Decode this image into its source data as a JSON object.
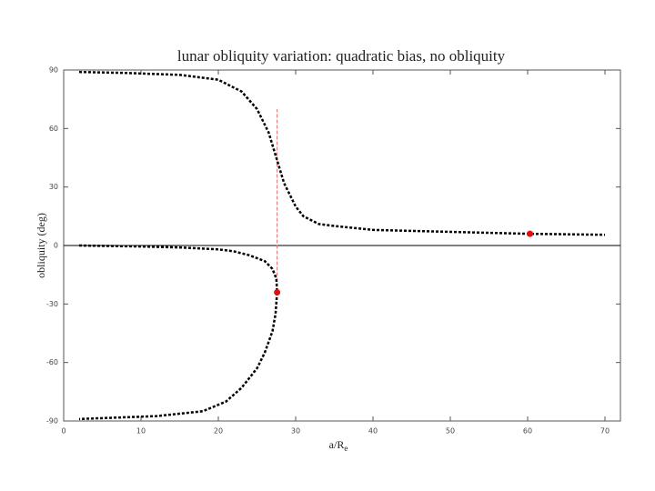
{
  "chart_data": {
    "type": "line",
    "title": "lunar obliquity variation: quadratic bias, no obliquity",
    "xlabel": {
      "main": "a/R",
      "sub": "e"
    },
    "ylabel": "obliquity (deg)",
    "xlim": [
      0,
      72
    ],
    "ylim": [
      -90,
      90
    ],
    "xticks": [
      0,
      10,
      20,
      30,
      40,
      50,
      60,
      70
    ],
    "yticks": [
      -90,
      -60,
      -30,
      0,
      30,
      60,
      90
    ],
    "zero_line": true,
    "series": [
      {
        "color": "#000000",
        "x": [
          2,
          8,
          15,
          20,
          23,
          25,
          26.5,
          27.5,
          28.5,
          30,
          31,
          33,
          35,
          40,
          50,
          60,
          70
        ],
        "y": [
          89,
          88.5,
          87.5,
          85,
          79,
          70,
          58,
          45,
          32,
          20,
          15,
          11,
          10,
          8,
          7,
          6,
          5.5
        ]
      },
      {
        "color": "#000000",
        "x": [
          2,
          10,
          15,
          20,
          22,
          24,
          26,
          27,
          27.5,
          27.6,
          27.4,
          27,
          26,
          25,
          23,
          21,
          18,
          12,
          2
        ],
        "y": [
          0,
          -0.5,
          -1,
          -2,
          -3,
          -5,
          -8,
          -12,
          -17,
          -24,
          -35,
          -44,
          -55,
          -63,
          -73,
          -80,
          -85,
          -87.5,
          -89
        ]
      }
    ],
    "points": {
      "color": "#e01010",
      "x": [
        60.3,
        27.6
      ],
      "y": [
        6,
        -24
      ]
    },
    "vline": {
      "color": "#e07070",
      "x": 27.6,
      "y": [
        -24,
        70
      ]
    }
  }
}
